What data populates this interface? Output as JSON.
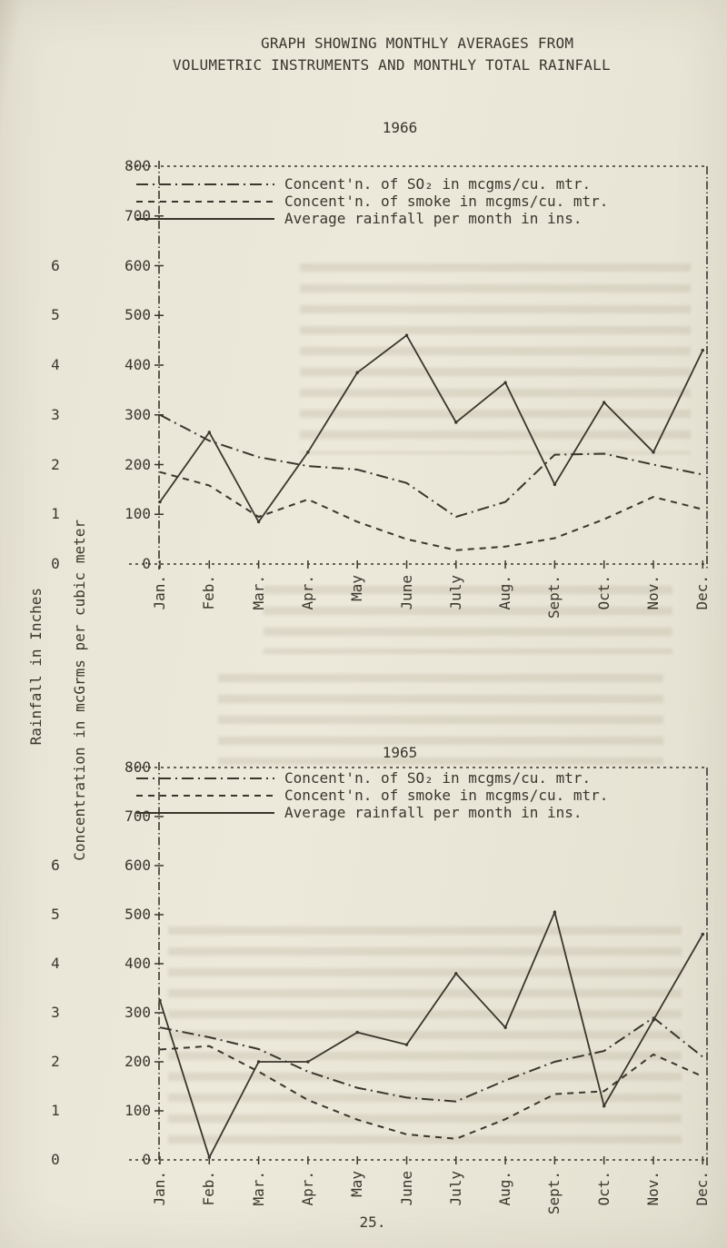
{
  "page": {
    "paper_color": "#e9e5d7",
    "ink_color": "#3a362d"
  },
  "header": {
    "title_line1": "GRAPH SHOWING MONTHLY AVERAGES FROM",
    "title_line2": "VOLUMETRIC INSTRUMENTS AND MONTHLY TOTAL RAINFALL"
  },
  "axis_titles": {
    "left_outer": "Rainfall in Inches",
    "left_inner": "Concentration in mcGrms per cubic meter"
  },
  "months": [
    "Jan.",
    "Feb.",
    "Mar.",
    "Apr.",
    "May",
    "June",
    "July",
    "Aug.",
    "Sept.",
    "Oct.",
    "Nov.",
    "Dec."
  ],
  "footer": {
    "page_number": "25."
  },
  "chart_data": [
    {
      "type": "line",
      "title": "1966",
      "categories": [
        "Jan.",
        "Feb.",
        "Mar.",
        "Apr.",
        "May",
        "June",
        "July",
        "Aug.",
        "Sept.",
        "Oct.",
        "Nov.",
        "Dec."
      ],
      "legend_position": "top-left-inside",
      "grid": false,
      "y_axes": {
        "concentration": {
          "label": "Concentration in mcGrms per cubic meter",
          "range": [
            0,
            800
          ],
          "ticks": [
            800,
            700,
            600,
            500,
            400,
            300,
            200,
            100,
            0
          ]
        },
        "rainfall": {
          "label": "Rainfall in Inches",
          "range": [
            0,
            8
          ],
          "ticks": [
            6,
            5,
            4,
            3,
            2,
            1,
            0
          ]
        }
      },
      "series": [
        {
          "name": "Concent'n. of SO₂ in mcgms/cu. mtr.",
          "style": "dashdot",
          "axis": "concentration",
          "values": [
            300,
            248,
            215,
            197,
            190,
            163,
            95,
            125,
            220,
            222,
            200,
            180
          ]
        },
        {
          "name": "Concent'n. of smoke in mcgms/cu. mtr.",
          "style": "dashed",
          "axis": "concentration",
          "values": [
            185,
            158,
            95,
            130,
            85,
            50,
            28,
            35,
            52,
            90,
            135,
            110
          ]
        },
        {
          "name": "Average rainfall per month in ins.",
          "style": "solid",
          "axis": "rainfall",
          "values": [
            1.25,
            2.65,
            0.85,
            2.25,
            3.85,
            4.6,
            2.85,
            3.65,
            1.6,
            3.25,
            2.25,
            4.3
          ]
        }
      ]
    },
    {
      "type": "line",
      "title": "1965",
      "categories": [
        "Jan.",
        "Feb.",
        "Mar.",
        "Apr.",
        "May",
        "June",
        "July",
        "Aug.",
        "Sept.",
        "Oct.",
        "Nov.",
        "Dec."
      ],
      "legend_position": "top-left-inside",
      "grid": false,
      "y_axes": {
        "concentration": {
          "label": "Concentration in mcGrms per cubic meter",
          "range": [
            0,
            800
          ],
          "ticks": [
            800,
            700,
            600,
            500,
            400,
            300,
            200,
            100,
            0
          ]
        },
        "rainfall": {
          "label": "Rainfall in Inches",
          "range": [
            0,
            8
          ],
          "ticks": [
            6,
            5,
            4,
            3,
            2,
            1,
            0
          ]
        }
      },
      "series": [
        {
          "name": "Concent'n. of SO₂ in mcgms/cu. mtr.",
          "style": "dashdot",
          "axis": "concentration",
          "values": [
            270,
            250,
            226,
            180,
            147,
            127,
            119,
            162,
            200,
            222,
            290,
            210
          ]
        },
        {
          "name": "Concent'n. of smoke in mcgms/cu. mtr.",
          "style": "dashed",
          "axis": "concentration",
          "values": [
            225,
            232,
            180,
            122,
            82,
            52,
            43,
            83,
            134,
            140,
            215,
            170
          ]
        },
        {
          "name": "Average rainfall per month in ins.",
          "style": "solid",
          "axis": "rainfall",
          "values": [
            3.25,
            0.05,
            2.0,
            2.0,
            2.6,
            2.35,
            3.8,
            2.7,
            5.05,
            1.1,
            2.85,
            4.6
          ]
        }
      ]
    }
  ]
}
